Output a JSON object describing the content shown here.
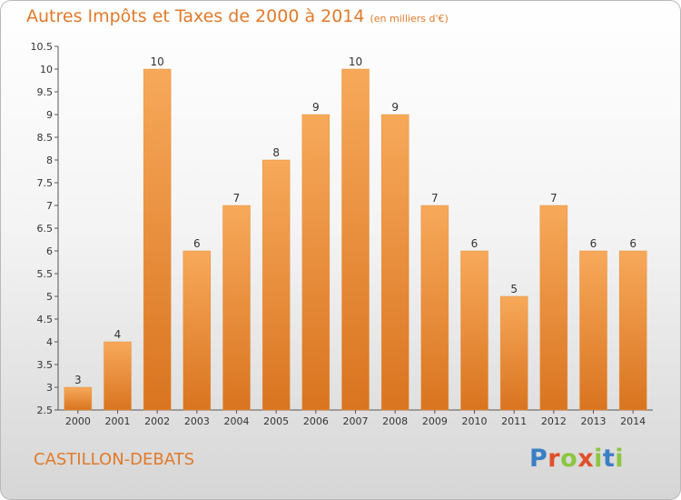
{
  "header": {
    "title": "Autres Impôts et Taxes de 2000 à 2014",
    "unit": "(en milliers d'€)"
  },
  "footer": {
    "commune": "CASTILLON-DEBATS",
    "logo": "Proxiti"
  },
  "colors": {
    "title": "#e07a2a",
    "bar_top": "#f7a95a",
    "bar_bottom": "#d97420",
    "logo_letters": [
      "#3a7fc4",
      "#e0502a",
      "#8cc63f",
      "#e0502a",
      "#8cc63f",
      "#3a7fc4",
      "#8cc63f"
    ]
  },
  "chart_data": {
    "type": "bar",
    "title": "Autres Impôts et Taxes de 2000 à 2014",
    "categories": [
      "2000",
      "2001",
      "2002",
      "2003",
      "2004",
      "2005",
      "2006",
      "2007",
      "2008",
      "2009",
      "2010",
      "2011",
      "2012",
      "2013",
      "2014"
    ],
    "values": [
      3,
      4,
      10,
      6,
      7,
      8,
      9,
      10,
      9,
      7,
      6,
      5,
      7,
      6,
      6
    ],
    "ylim": [
      2.5,
      10.5
    ],
    "yticks": [
      "2.5",
      "3",
      "3.5",
      "4",
      "4.5",
      "5",
      "5.5",
      "6",
      "6.5",
      "7",
      "7.5",
      "8",
      "8.5",
      "9",
      "9.5",
      "10",
      "10.5"
    ],
    "grid": false,
    "xlabel": "",
    "ylabel": ""
  }
}
